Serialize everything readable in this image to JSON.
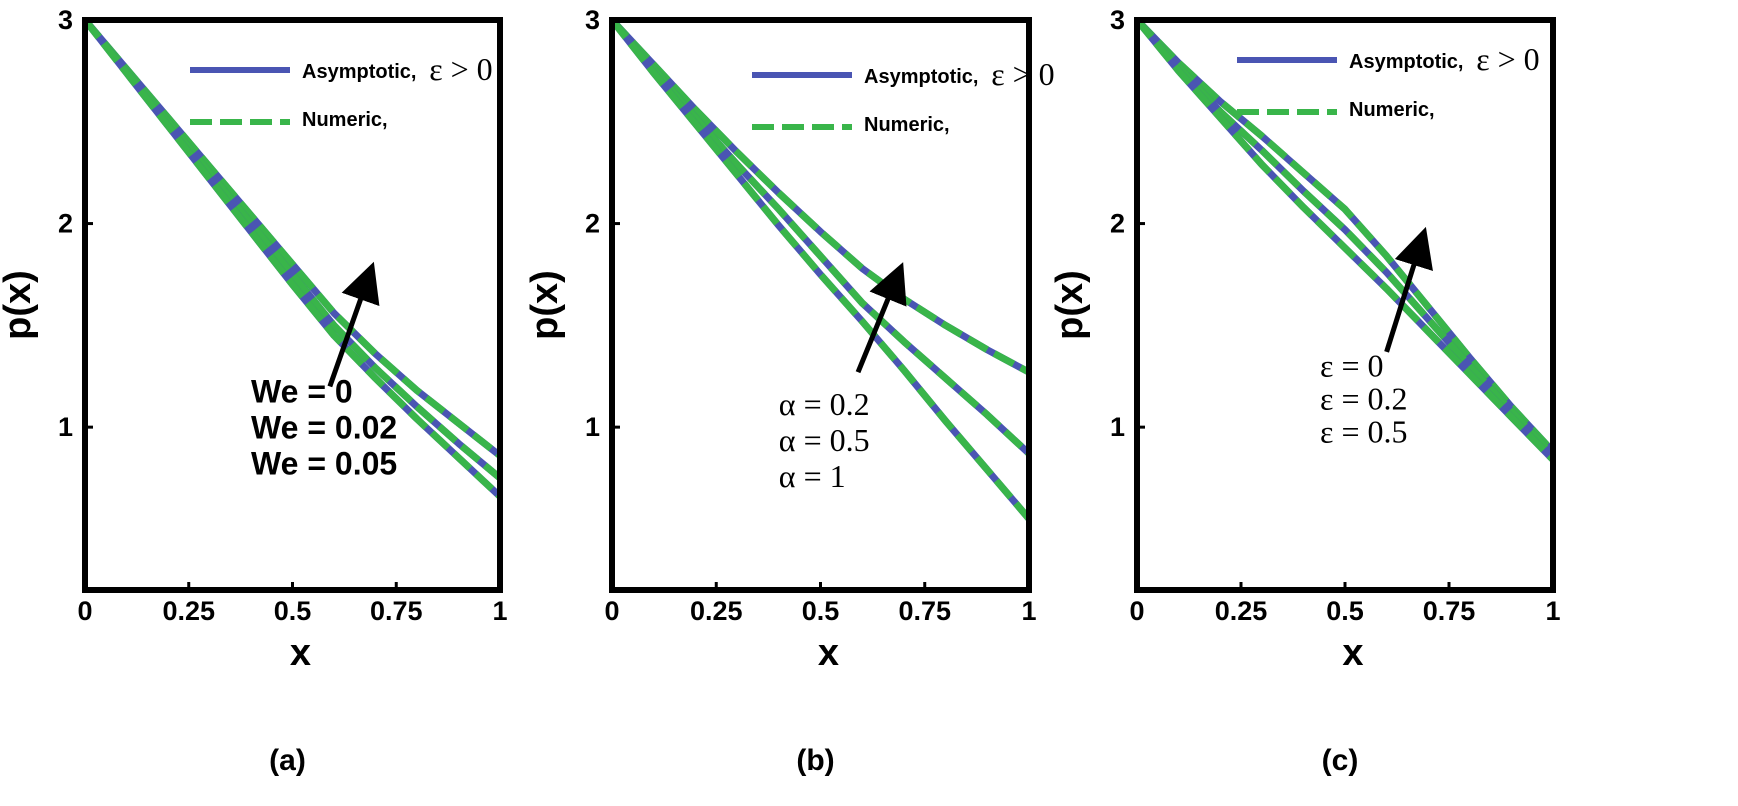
{
  "figure": {
    "colors": {
      "asymptotic": "#4a55b3",
      "numeric": "#39b54a",
      "axes": "#000000"
    }
  },
  "chart_data": [
    {
      "panel": "(a)",
      "type": "line",
      "xlabel": "x",
      "ylabel": "p(x)",
      "xlim": [
        0,
        1
      ],
      "ylim": [
        0.2,
        3
      ],
      "xticks": [
        "0",
        "0.25",
        "0.5",
        "0.75",
        "1"
      ],
      "yticks": [
        "1",
        "2",
        "3"
      ],
      "legend": {
        "asymptotic": "Asymptotic,",
        "numeric": "Numeric,",
        "symbol": "ε > 0",
        "placement": "top-right"
      },
      "annotation": {
        "lines": [
          "We = 0",
          "We = 0.02",
          "We = 0.05"
        ],
        "style": "bold",
        "arrow_from": [
          0.59,
          1.2
        ],
        "arrow_to": [
          0.68,
          1.72
        ]
      },
      "x": [
        0,
        0.1,
        0.2,
        0.3,
        0.4,
        0.5,
        0.6,
        0.7,
        0.8,
        0.9,
        1.0
      ],
      "series": [
        {
          "values": [
            3.0,
            2.76,
            2.52,
            2.28,
            2.04,
            1.8,
            1.56,
            1.36,
            1.18,
            1.02,
            0.86
          ]
        },
        {
          "values": [
            3.0,
            2.75,
            2.5,
            2.25,
            2.0,
            1.75,
            1.5,
            1.29,
            1.1,
            0.92,
            0.75
          ]
        },
        {
          "values": [
            3.0,
            2.74,
            2.48,
            2.22,
            1.96,
            1.7,
            1.45,
            1.24,
            1.04,
            0.85,
            0.66
          ]
        }
      ]
    },
    {
      "panel": "(b)",
      "type": "line",
      "xlabel": "x",
      "ylabel": "p(x)",
      "xlim": [
        0,
        1
      ],
      "ylim": [
        0.2,
        3
      ],
      "xticks": [
        "0",
        "0.25",
        "0.5",
        "0.75",
        "1"
      ],
      "yticks": [
        "1",
        "2",
        "3"
      ],
      "legend": {
        "asymptotic": "Asymptotic,",
        "numeric": "Numeric,",
        "symbol": "ε > 0",
        "placement": "top-right"
      },
      "annotation": {
        "lines": [
          "α = 0.2",
          "α = 0.5",
          "α = 1"
        ],
        "style": "serif",
        "arrow_from": [
          0.59,
          1.27
        ],
        "arrow_to": [
          0.68,
          1.72
        ]
      },
      "x": [
        0,
        0.1,
        0.2,
        0.3,
        0.4,
        0.5,
        0.6,
        0.7,
        0.8,
        0.9,
        1.0
      ],
      "series": [
        {
          "values": [
            3.0,
            2.78,
            2.56,
            2.35,
            2.15,
            1.96,
            1.78,
            1.63,
            1.5,
            1.38,
            1.27
          ]
        },
        {
          "values": [
            3.0,
            2.76,
            2.52,
            2.29,
            2.07,
            1.84,
            1.61,
            1.42,
            1.24,
            1.06,
            0.87
          ]
        },
        {
          "values": [
            3.0,
            2.74,
            2.49,
            2.24,
            1.99,
            1.75,
            1.52,
            1.28,
            1.03,
            0.79,
            0.55
          ]
        }
      ]
    },
    {
      "panel": "(c)",
      "type": "line",
      "xlabel": "x",
      "ylabel": "p(x)",
      "xlim": [
        0,
        1
      ],
      "ylim": [
        0.2,
        3
      ],
      "xticks": [
        "0",
        "0.25",
        "0.5",
        "0.75",
        "1"
      ],
      "yticks": [
        "1",
        "2",
        "3"
      ],
      "legend": {
        "asymptotic": "Asymptotic,",
        "numeric": "Numeric,",
        "symbol": "ε > 0",
        "placement": "top-right"
      },
      "annotation": {
        "lines": [
          "ε = 0",
          "ε = 0.2",
          "ε = 0.5"
        ],
        "style": "serif",
        "arrow_from": [
          0.6,
          1.37
        ],
        "arrow_to": [
          0.68,
          1.89
        ]
      },
      "x": [
        0,
        0.1,
        0.2,
        0.3,
        0.4,
        0.5,
        0.6,
        0.7,
        0.8,
        0.9,
        1.0
      ],
      "series": [
        {
          "values": [
            3.0,
            2.79,
            2.6,
            2.43,
            2.25,
            2.07,
            1.84,
            1.59,
            1.34,
            1.1,
            0.88
          ]
        },
        {
          "values": [
            3.0,
            2.77,
            2.55,
            2.36,
            2.16,
            1.97,
            1.76,
            1.53,
            1.3,
            1.08,
            0.86
          ]
        },
        {
          "values": [
            3.0,
            2.75,
            2.52,
            2.29,
            2.08,
            1.88,
            1.68,
            1.47,
            1.26,
            1.05,
            0.84
          ]
        }
      ]
    }
  ]
}
